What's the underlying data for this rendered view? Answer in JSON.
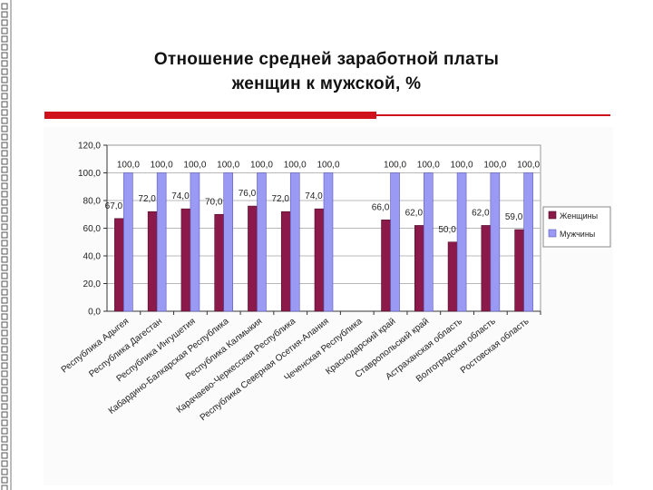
{
  "slide": {
    "title_line1": "Отношение средней заработной платы",
    "title_line2": "женщин к мужской, %",
    "frame_icon": "grid-square-decoration-icon"
  },
  "colors": {
    "accent": "#d0121c",
    "women": "#8b1a4a",
    "men": "#9a9af5",
    "grid": "#b8b8b8"
  },
  "chart_data": {
    "type": "bar",
    "title": "",
    "xlabel": "",
    "ylabel": "",
    "ylim": [
      0,
      120
    ],
    "yticks": [
      "0,0",
      "20,0",
      "40,0",
      "60,0",
      "80,0",
      "100,0",
      "120,0"
    ],
    "ytick_values": [
      0,
      20,
      40,
      60,
      80,
      100,
      120
    ],
    "grid": true,
    "legend_position": "right",
    "categories": [
      "Республика Адыгея",
      "Республика Дагестан",
      "Республика Ингушетия",
      "Кабардино-Балкарская Республика",
      "Республика Калмыкия",
      "Карачаево-Черкесская Республика",
      "Республика Северная Осетия-Алания",
      "Чеченская Республика",
      "Краснодарский край",
      "Ставропольский край",
      "Астраханская область",
      "Волгоградская область",
      "Ростовская область"
    ],
    "series": [
      {
        "name": "Женщины",
        "values": [
          67,
          72,
          74,
          70,
          76,
          72,
          74,
          null,
          66,
          62,
          50,
          62,
          59
        ],
        "labels": [
          "67,0",
          "72,0",
          "74,0",
          "70,0",
          "76,0",
          "72,0",
          "74,0",
          "",
          "66,0",
          "62,0",
          "50,0",
          "62,0",
          "59,0"
        ]
      },
      {
        "name": "Мужчины",
        "values": [
          100,
          100,
          100,
          100,
          100,
          100,
          100,
          null,
          100,
          100,
          100,
          100,
          100
        ],
        "labels": [
          "100,0",
          "100,0",
          "100,0",
          "100,0",
          "100,0",
          "100,0",
          "100,0",
          "",
          "100,0",
          "100,0",
          "100,0",
          "100,0",
          "100,0"
        ]
      }
    ]
  }
}
